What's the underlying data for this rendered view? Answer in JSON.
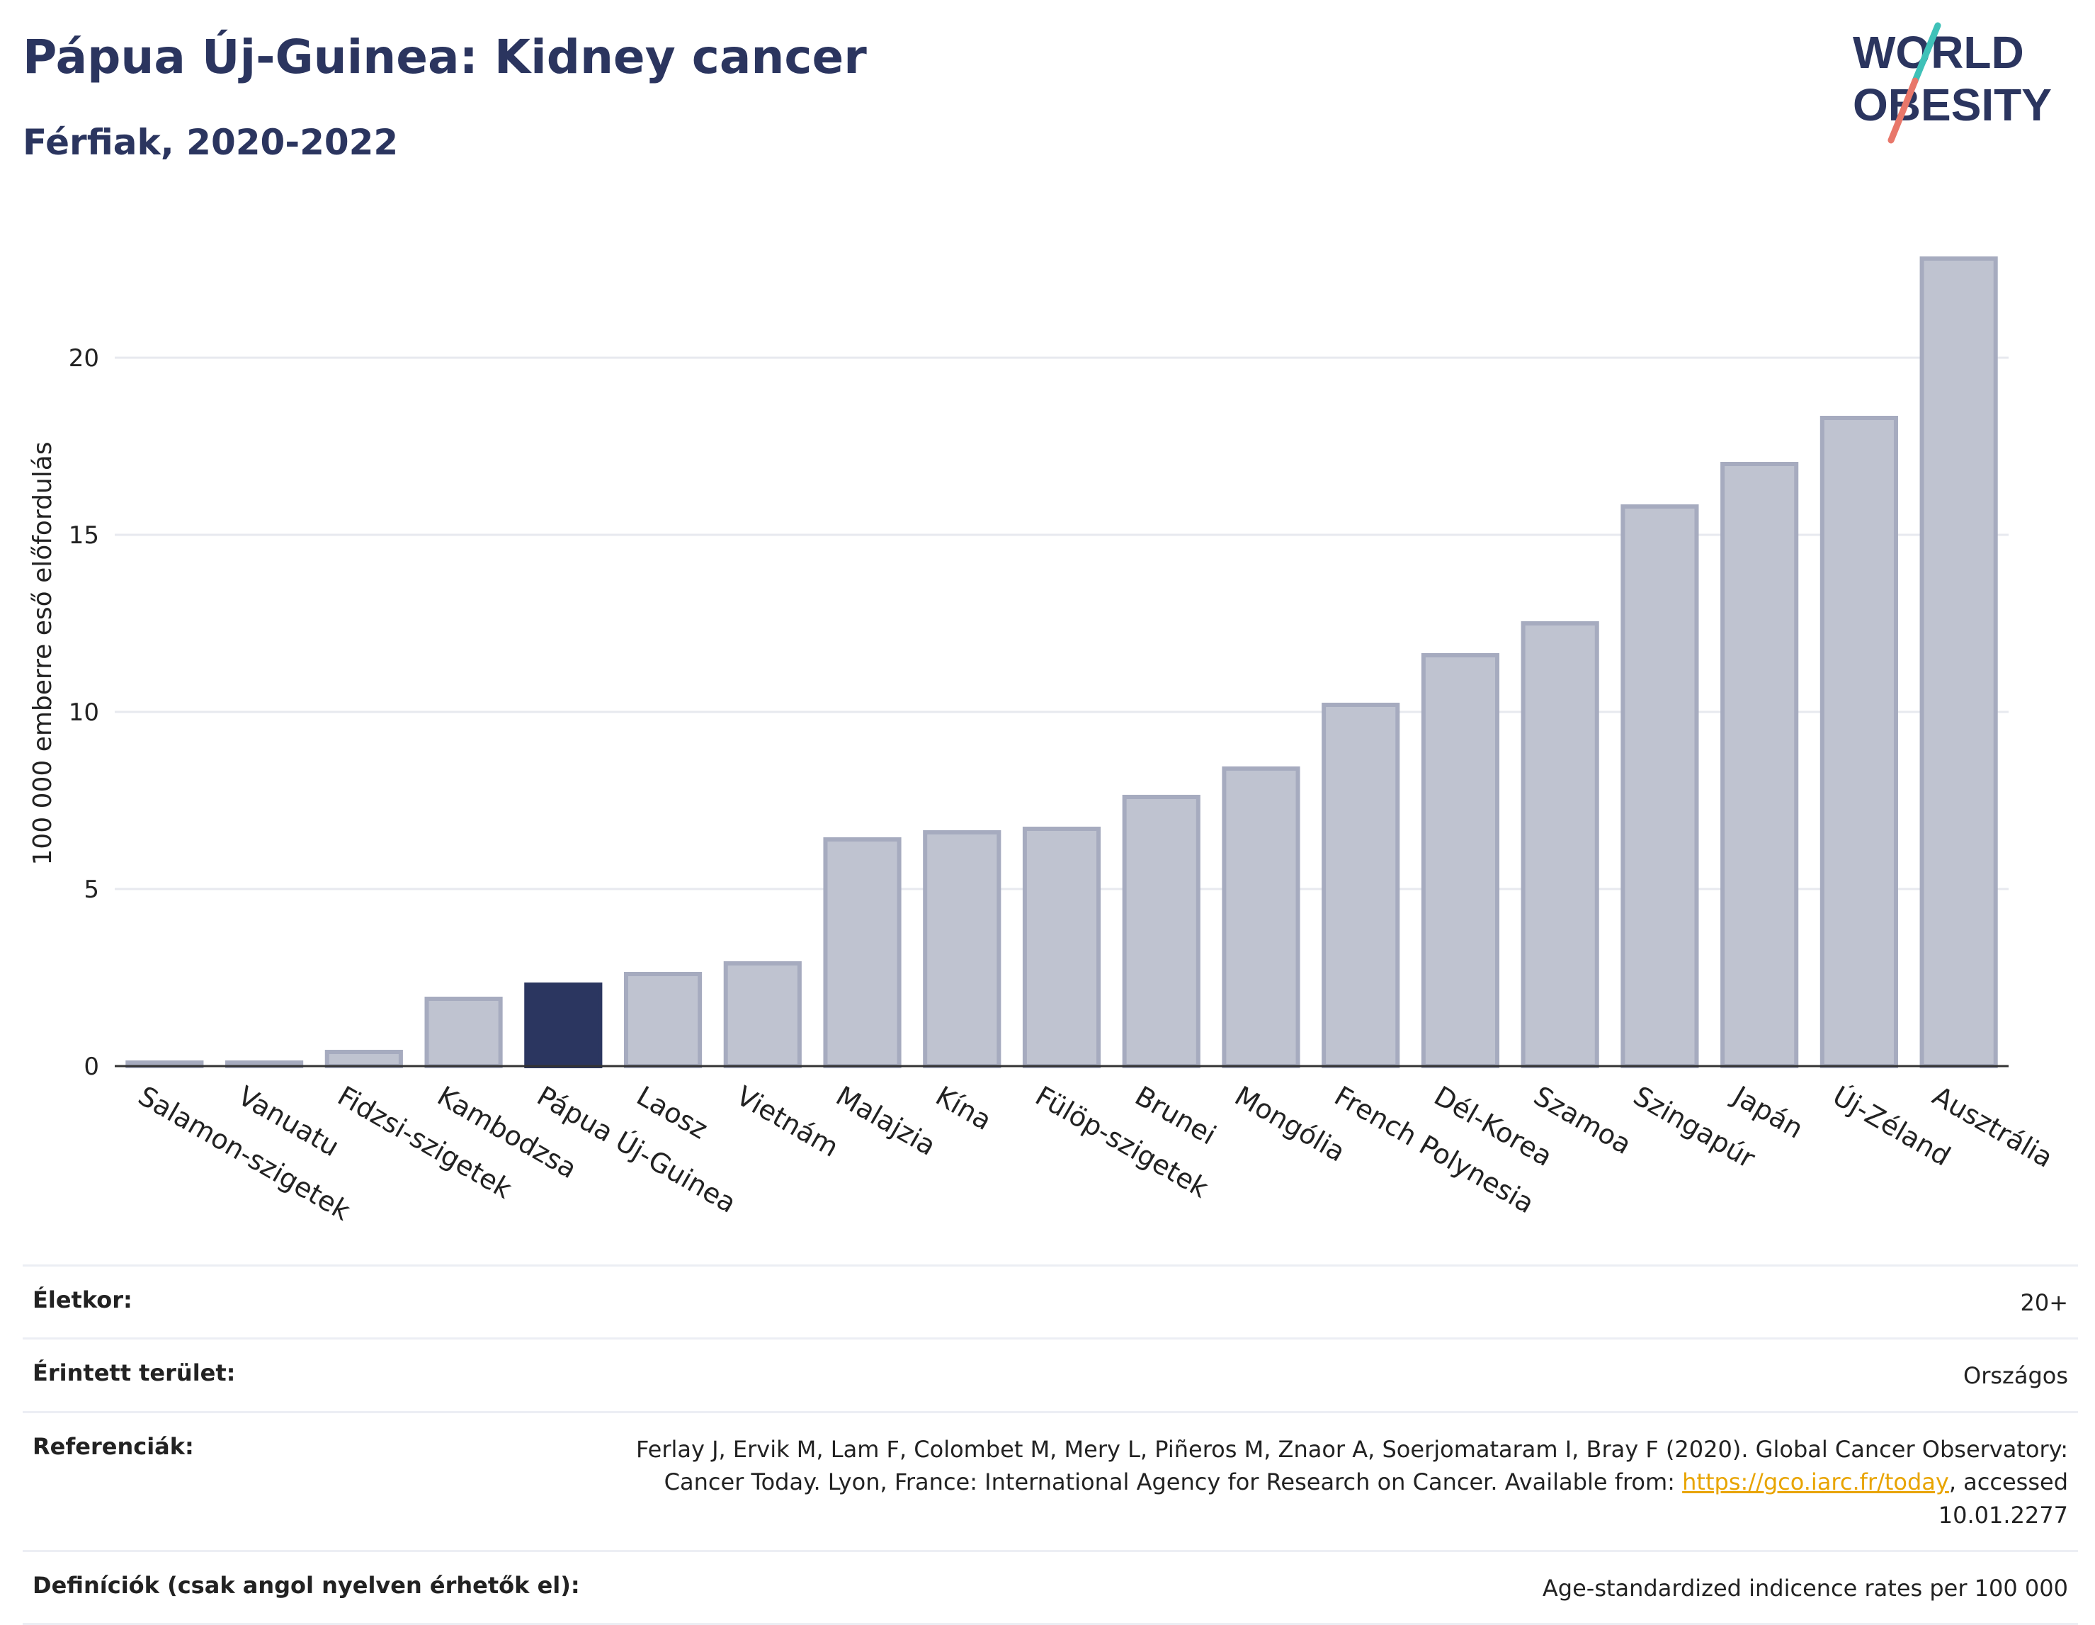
{
  "header": {
    "title": "Pápua Új-Guinea: Kidney cancer",
    "subtitle": "Férfiak, 2020-2022"
  },
  "logo": {
    "line1": "WORLD",
    "line2": "OBESITY"
  },
  "colors": {
    "highlight": "#2b3660",
    "bar_fill": "#bfc3d0",
    "bar_stroke": "#a6abbf",
    "grid": "#e7e9ef",
    "text": "#2b355f",
    "logo_teal": "#3fc1b8",
    "logo_coral": "#e8776a"
  },
  "chart_data": {
    "type": "bar",
    "ylabel": "100 000 emberre eső előfordulás",
    "yticks": [
      0,
      5,
      10,
      15,
      20
    ],
    "ylim": [
      0,
      23.5
    ],
    "highlight": "Pápua Új-Guinea",
    "categories": [
      "Salamon-szigetek",
      "Vanuatu",
      "Fidzsi-szigetek",
      "Kambodzsa",
      "Pápua Új-Guinea",
      "Laosz",
      "Vietnám",
      "Malajzia",
      "Kína",
      "Fülöp-szigetek",
      "Brunei",
      "Mongólia",
      "French Polynesia",
      "Dél-Korea",
      "Szamoa",
      "Szingapúr",
      "Japán",
      "Új-Zéland",
      "Ausztrália"
    ],
    "values": [
      0.1,
      0.1,
      0.4,
      1.9,
      2.3,
      2.6,
      2.9,
      6.4,
      6.6,
      6.7,
      7.6,
      8.4,
      10.2,
      11.6,
      12.5,
      15.8,
      17.0,
      18.3,
      22.8
    ]
  },
  "info": {
    "age_label": "Életkor:",
    "age_value": "20+",
    "area_label": "Érintett terület:",
    "area_value": "Országos",
    "ref_label": "Referenciák:",
    "ref_text_before": "Ferlay J, Ervik M, Lam F, Colombet M, Mery L, Piñeros M, Znaor A, Soerjomataram I, Bray F (2020). Global Cancer Observatory: Cancer Today. Lyon, France: International Agency for Research on Cancer. Available from: ",
    "ref_link": "https://gco.iarc.fr/today",
    "ref_text_after": ", accessed 10.01.2277",
    "def_label": "Definíciók (csak angol nyelven érhetők el):",
    "def_value": "Age-standardized indicence rates per 100 000"
  }
}
